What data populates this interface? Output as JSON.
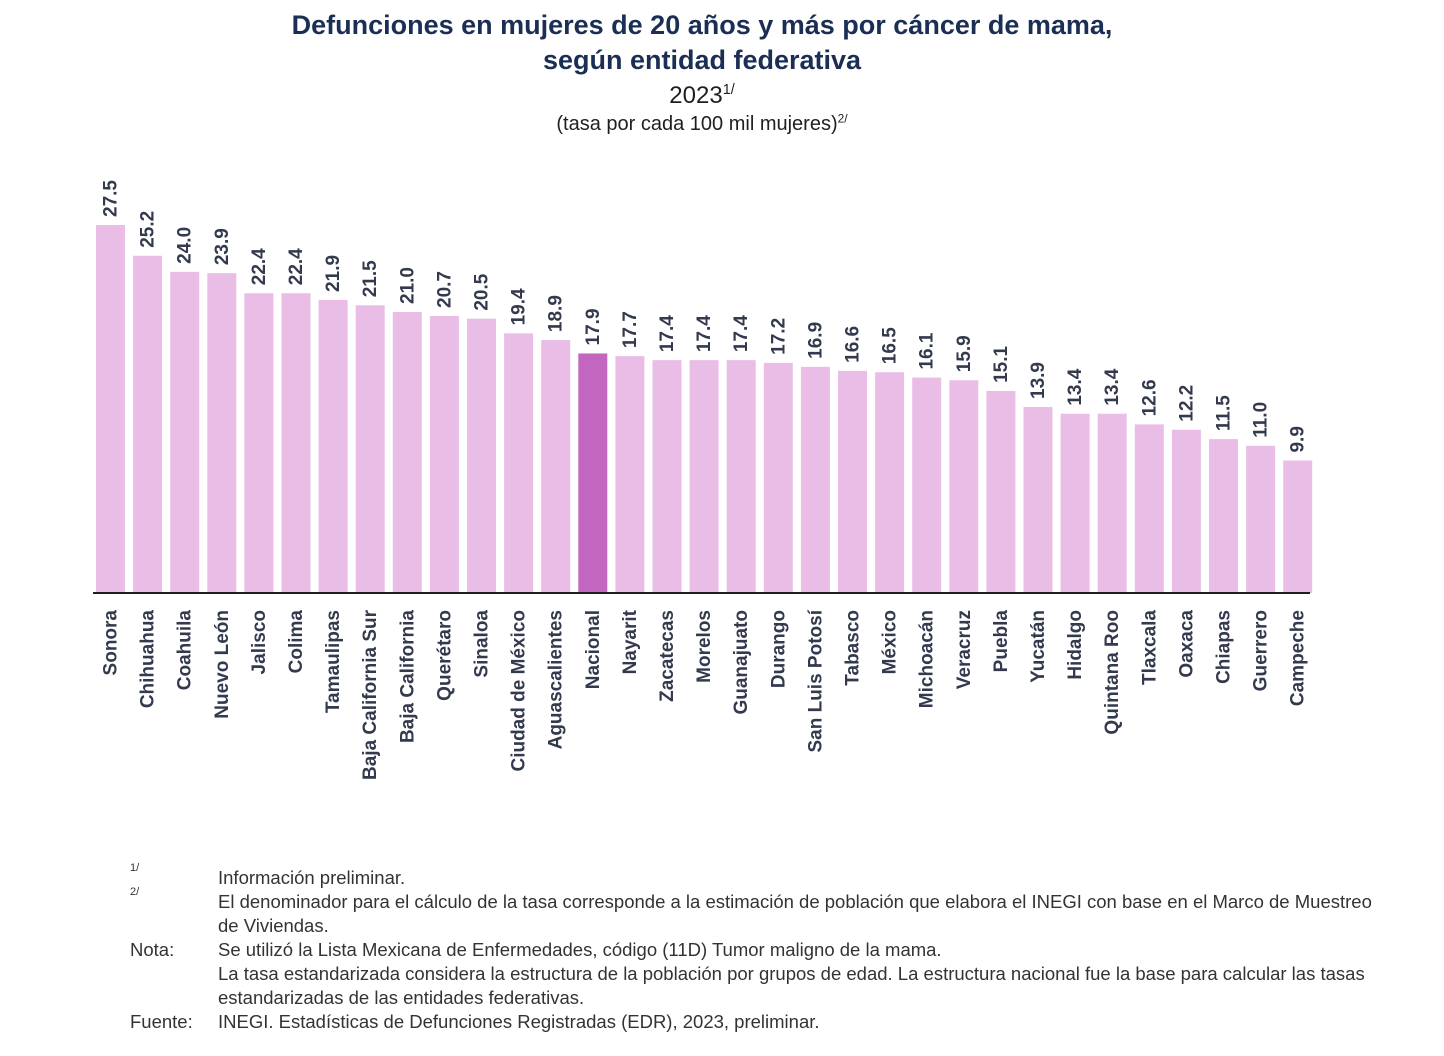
{
  "header": {
    "title_line1": "Defunciones en mujeres de 20 años y más por cáncer de mama,",
    "title_line2": "según entidad federativa",
    "year": "2023",
    "year_ref": "1/",
    "subtitle": "(tasa por cada 100 mil mujeres)",
    "subtitle_ref": "2/"
  },
  "colors": {
    "bar": "#e9bde6",
    "highlight": "#c266c0",
    "axis": "#1f1f1f",
    "label": "#333a4d",
    "title": "#1b2f55"
  },
  "chart_data": {
    "type": "bar",
    "title": "Defunciones en mujeres de 20 años y más por cáncer de mama, según entidad federativa",
    "ylabel": "",
    "xlabel": "",
    "ylim": [
      0,
      28
    ],
    "grid": false,
    "highlight_category": "Nacional",
    "categories": [
      "Sonora",
      "Chihuahua",
      "Coahuila",
      "Nuevo León",
      "Jalisco",
      "Colima",
      "Tamaulipas",
      "Baja California Sur",
      "Baja California",
      "Querétaro",
      "Sinaloa",
      "Ciudad de México",
      "Aguascalientes",
      "Nacional",
      "Nayarit",
      "Zacatecas",
      "Morelos",
      "Guanajuato",
      "Durango",
      "San Luis Potosí",
      "Tabasco",
      "México",
      "Michoacán",
      "Veracruz",
      "Puebla",
      "Yucatán",
      "Hidalgo",
      "Quintana Roo",
      "Tlaxcala",
      "Oaxaca",
      "Chiapas",
      "Guerrero",
      "Campeche"
    ],
    "values": [
      27.5,
      25.2,
      24.0,
      23.9,
      22.4,
      22.4,
      21.9,
      21.5,
      21.0,
      20.7,
      20.5,
      19.4,
      18.9,
      17.9,
      17.7,
      17.4,
      17.4,
      17.4,
      17.2,
      16.9,
      16.6,
      16.5,
      16.1,
      15.9,
      15.1,
      13.9,
      13.4,
      13.4,
      12.6,
      12.2,
      11.5,
      11.0,
      9.9
    ],
    "value_labels": [
      "27.5",
      "25.2",
      "24.0",
      "23.9",
      "22.4",
      "22.4",
      "21.9",
      "21.5",
      "21.0",
      "20.7",
      "20.5",
      "19.4",
      "18.9",
      "17.9",
      "17.7",
      "17.4",
      "17.4",
      "17.4",
      "17.2",
      "16.9",
      "16.6",
      "16.5",
      "16.1",
      "15.9",
      "15.1",
      "13.9",
      "13.4",
      "13.4",
      "12.6",
      "12.2",
      "11.5",
      "11.0",
      "9.9"
    ]
  },
  "notes": {
    "n1_key": "1/",
    "n1_text": "Información preliminar.",
    "n2_key": "2/",
    "n2_text": "El denominador para el cálculo de la tasa corresponde a la estimación de población que elabora el INEGI con base en el Marco de Muestreo de Viviendas.",
    "nota_key": "Nota:",
    "nota_text1": "Se utilizó la Lista Mexicana de Enfermedades, código (11D) Tumor maligno de la mama.",
    "nota_text2": "La tasa estandarizada considera la estructura de la población por grupos de edad. La estructura nacional fue la base para calcular las tasas estandarizadas de las entidades federativas.",
    "fuente_key": "Fuente:",
    "fuente_text": "INEGI. Estadísticas de Defunciones Registradas (EDR), 2023, preliminar."
  }
}
